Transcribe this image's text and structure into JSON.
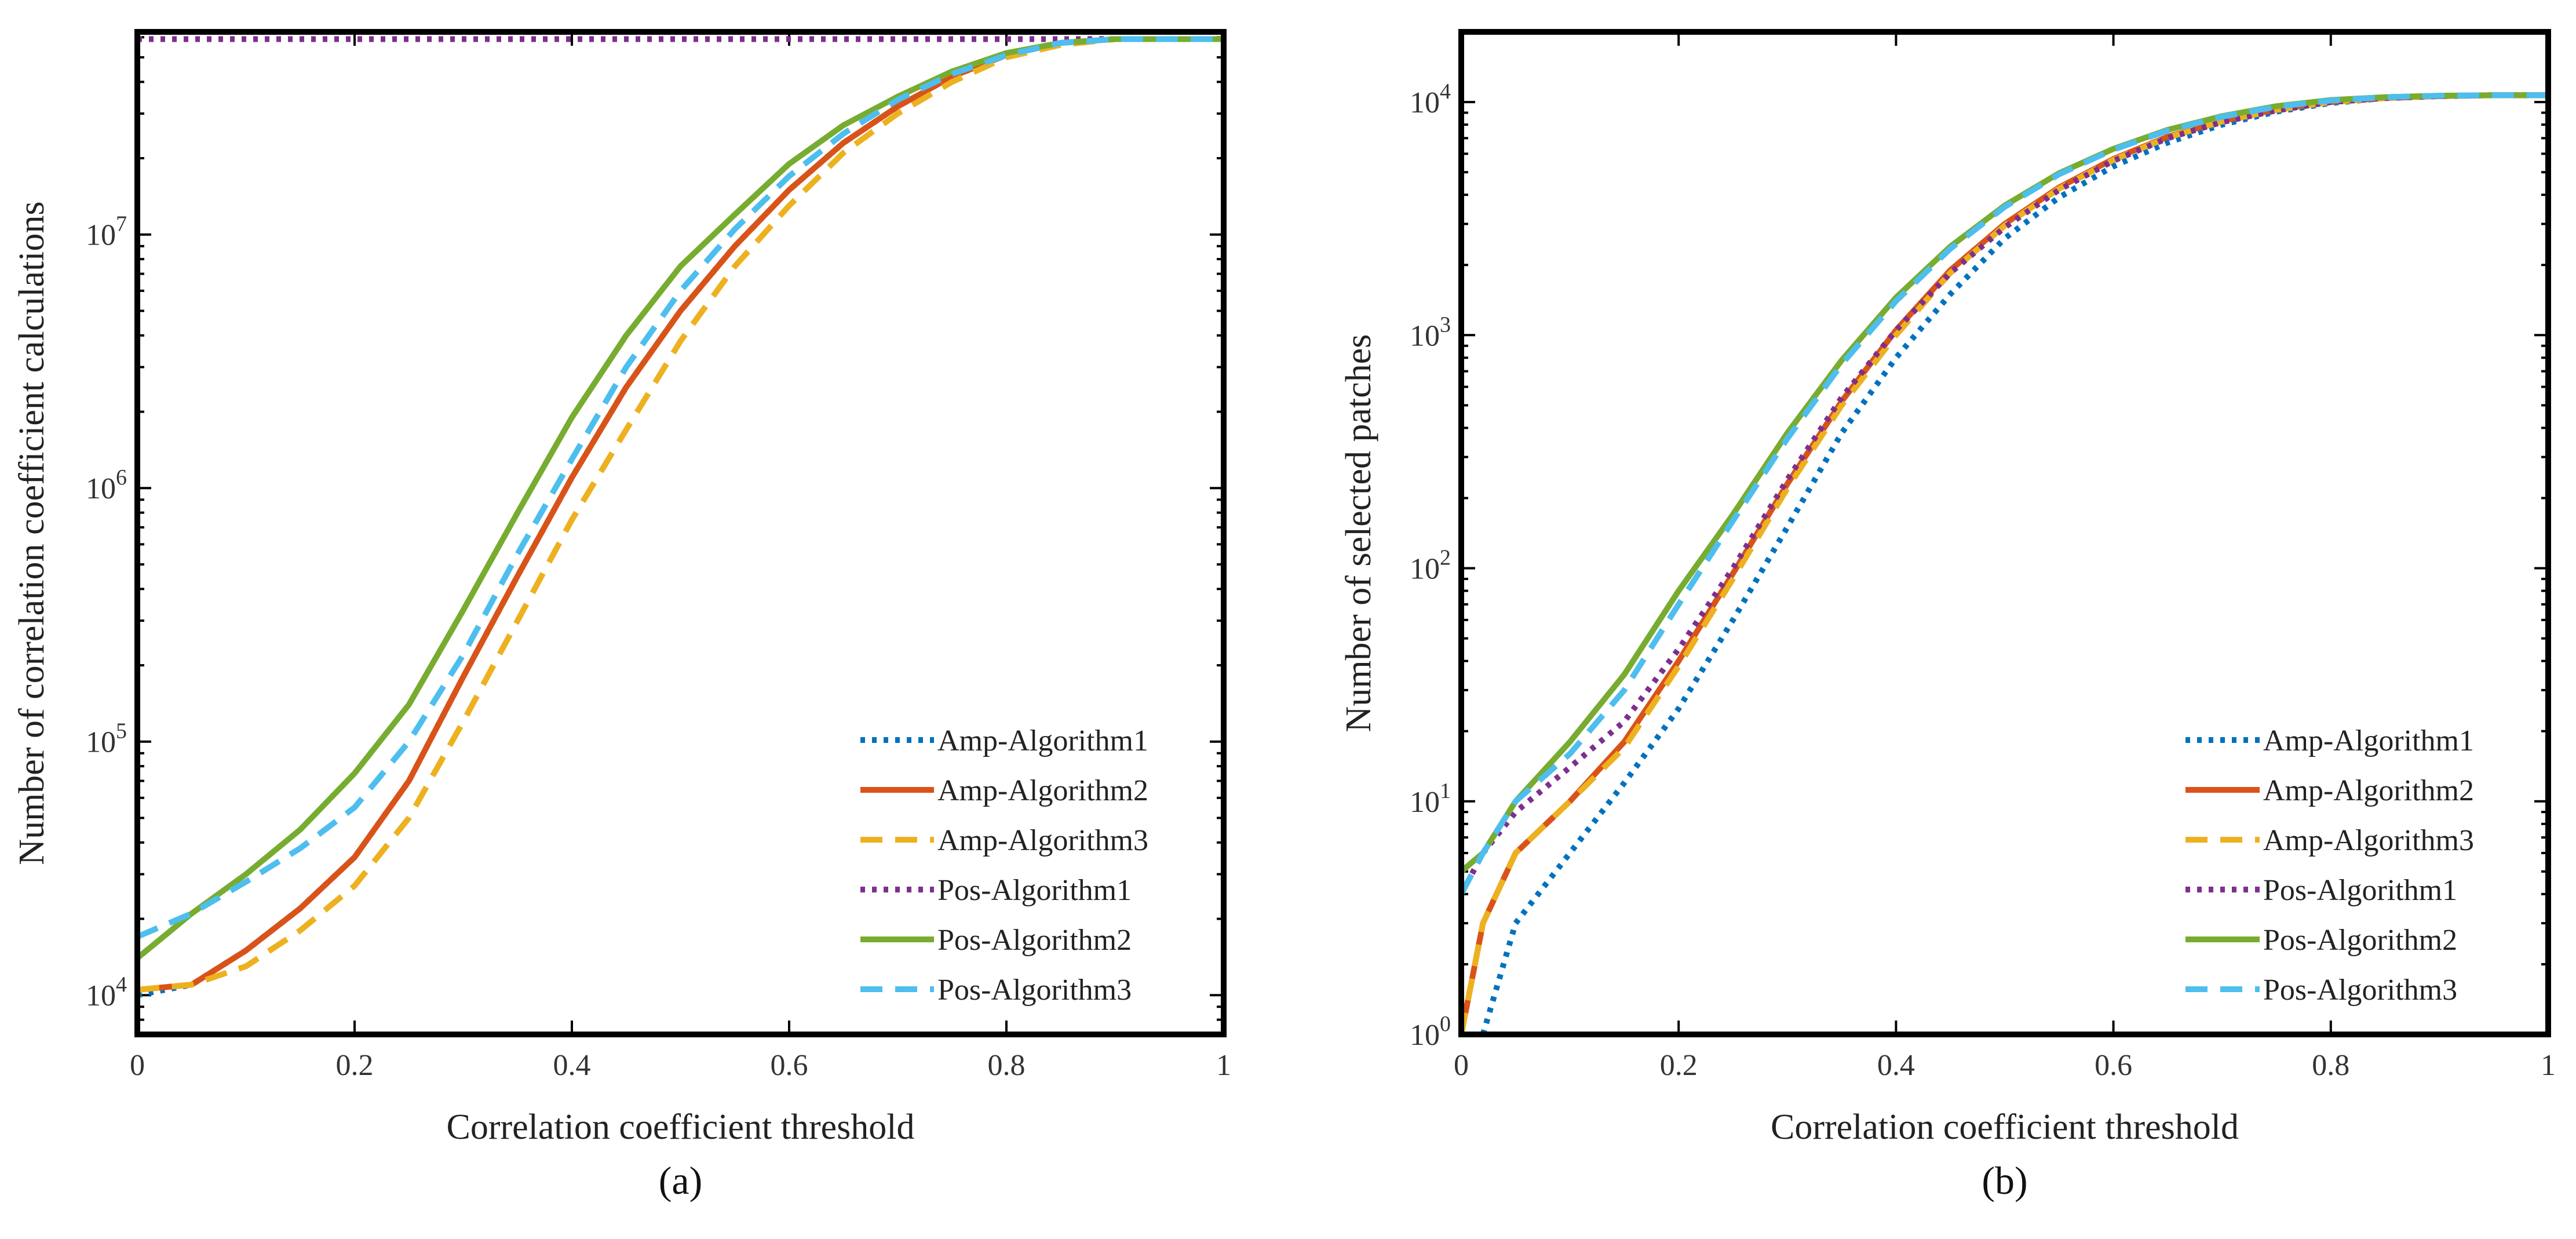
{
  "chart_data": [
    {
      "type": "line",
      "panel_label": "(a)",
      "xlabel": "Correlation coefficient threshold",
      "ylabel": "Number of correlation coefficient calculations",
      "xlim": [
        0,
        1
      ],
      "ylim": [
        7000,
        63000000
      ],
      "yscale": "log",
      "x_ticks": [
        0,
        0.2,
        0.4,
        0.6,
        0.8,
        1
      ],
      "x_tick_labels": [
        "0",
        "0.2",
        "0.4",
        "0.6",
        "0.8",
        "1"
      ],
      "y_ticks": [
        10000,
        100000,
        1000000,
        10000000
      ],
      "y_tick_labels": [
        {
          "base": "10",
          "exp": "4"
        },
        {
          "base": "10",
          "exp": "5"
        },
        {
          "base": "10",
          "exp": "6"
        },
        {
          "base": "10",
          "exp": "7"
        }
      ],
      "grid": false,
      "legend_position": "bottom-right",
      "x": [
        0,
        0.05,
        0.1,
        0.15,
        0.2,
        0.25,
        0.3,
        0.35,
        0.4,
        0.45,
        0.5,
        0.55,
        0.6,
        0.65,
        0.7,
        0.75,
        0.8,
        0.85,
        0.9,
        0.95,
        1
      ],
      "series": [
        {
          "name": "Amp-Algorithm1",
          "color": "#0072BD",
          "style": "dotted",
          "values": [
            10000,
            11000,
            15000,
            22000,
            35000,
            70000,
            180000,
            450000,
            1100000,
            2500000,
            5000000,
            9000000,
            15000000,
            23000000,
            32000000,
            42000000,
            51000000,
            57000000,
            59000000,
            59000000,
            59000000
          ]
        },
        {
          "name": "Amp-Algorithm2",
          "color": "#D95319",
          "style": "solid",
          "values": [
            10500,
            11000,
            15000,
            22000,
            35000,
            70000,
            180000,
            450000,
            1100000,
            2500000,
            5000000,
            9000000,
            15000000,
            23000000,
            32000000,
            42000000,
            51000000,
            57000000,
            59000000,
            59000000,
            59000000
          ]
        },
        {
          "name": "Amp-Algorithm3",
          "color": "#EDB120",
          "style": "dashed",
          "values": [
            10500,
            11000,
            13000,
            18000,
            27000,
            50000,
            120000,
            300000,
            750000,
            1700000,
            3800000,
            7500000,
            13000000,
            21000000,
            30000000,
            40000000,
            50000000,
            56000000,
            59000000,
            59000000,
            59000000
          ]
        },
        {
          "name": "Pos-Algorithm1",
          "color": "#7E2F8E",
          "style": "dotted",
          "values": [
            59000000,
            59000000,
            59000000,
            59000000,
            59000000,
            59000000,
            59000000,
            59000000,
            59000000,
            59000000,
            59000000,
            59000000,
            59000000,
            59000000,
            59000000,
            59000000,
            59000000,
            59000000,
            59000000,
            59000000,
            59000000
          ]
        },
        {
          "name": "Pos-Algorithm2",
          "color": "#77AC30",
          "style": "solid",
          "values": [
            14000,
            21000,
            30000,
            45000,
            75000,
            140000,
            330000,
            800000,
            1900000,
            4000000,
            7500000,
            12000000,
            19000000,
            27000000,
            35000000,
            44000000,
            52000000,
            57000000,
            59000000,
            59000000,
            59000000
          ]
        },
        {
          "name": "Pos-Algorithm3",
          "color": "#4DBEEE",
          "style": "dashed",
          "values": [
            17000,
            21000,
            28000,
            38000,
            55000,
            100000,
            220000,
            550000,
            1300000,
            3000000,
            6000000,
            10500000,
            17000000,
            25000000,
            34000000,
            43000000,
            51000000,
            57000000,
            59000000,
            59000000,
            59000000
          ]
        }
      ]
    },
    {
      "type": "line",
      "panel_label": "(b)",
      "xlabel": "Correlation coefficient threshold",
      "ylabel": "Number of selected patches",
      "xlim": [
        0,
        1
      ],
      "ylim": [
        1,
        20000
      ],
      "yscale": "log",
      "x_ticks": [
        0,
        0.2,
        0.4,
        0.6,
        0.8,
        1
      ],
      "x_tick_labels": [
        "0",
        "0.2",
        "0.4",
        "0.6",
        "0.8",
        "1"
      ],
      "y_ticks": [
        1,
        10,
        100,
        1000,
        10000
      ],
      "y_tick_labels": [
        {
          "base": "10",
          "exp": "0"
        },
        {
          "base": "10",
          "exp": "1"
        },
        {
          "base": "10",
          "exp": "2"
        },
        {
          "base": "10",
          "exp": "3"
        },
        {
          "base": "10",
          "exp": "4"
        }
      ],
      "grid": false,
      "legend_position": "bottom-right",
      "x": [
        0,
        0.02,
        0.05,
        0.1,
        0.15,
        0.2,
        0.25,
        0.3,
        0.35,
        0.4,
        0.45,
        0.5,
        0.55,
        0.6,
        0.65,
        0.7,
        0.75,
        0.8,
        0.85,
        0.9,
        0.95,
        1
      ],
      "series": [
        {
          "name": "Amp-Algorithm1",
          "color": "#0072BD",
          "style": "dotted",
          "values": [
            null,
            1,
            3,
            6,
            12,
            25,
            60,
            150,
            380,
            800,
            1500,
            2600,
            3900,
            5300,
            6700,
            8000,
            9100,
            9900,
            10400,
            10600,
            10700,
            10700
          ]
        },
        {
          "name": "Amp-Algorithm2",
          "color": "#D95319",
          "style": "solid",
          "values": [
            1,
            3,
            6,
            10,
            18,
            40,
            95,
            230,
            520,
            1050,
            1900,
            3000,
            4300,
            5700,
            7100,
            8300,
            9300,
            10000,
            10400,
            10600,
            10700,
            10700
          ]
        },
        {
          "name": "Amp-Algorithm3",
          "color": "#EDB120",
          "style": "dashed",
          "values": [
            1,
            3,
            6,
            10,
            17,
            38,
            90,
            220,
            500,
            1000,
            1850,
            2950,
            4250,
            5650,
            7050,
            8250,
            9250,
            10000,
            10400,
            10600,
            10700,
            10700
          ]
        },
        {
          "name": "Pos-Algorithm1",
          "color": "#7E2F8E",
          "style": "dotted",
          "values": [
            4,
            6,
            9,
            14,
            22,
            45,
            100,
            240,
            540,
            1050,
            1850,
            2900,
            4200,
            5600,
            7000,
            8200,
            9200,
            10000,
            10400,
            10600,
            10700,
            10700
          ]
        },
        {
          "name": "Pos-Algorithm2",
          "color": "#77AC30",
          "style": "solid",
          "values": [
            5,
            6,
            10,
            18,
            35,
            80,
            170,
            380,
            780,
            1450,
            2400,
            3600,
            4950,
            6300,
            7600,
            8700,
            9600,
            10200,
            10500,
            10650,
            10700,
            10700
          ]
        },
        {
          "name": "Pos-Algorithm3",
          "color": "#4DBEEE",
          "style": "dashed",
          "values": [
            4,
            6,
            10,
            16,
            30,
            70,
            160,
            360,
            750,
            1400,
            2350,
            3550,
            4900,
            6250,
            7550,
            8650,
            9550,
            10150,
            10500,
            10650,
            10700,
            10700
          ]
        }
      ]
    }
  ]
}
